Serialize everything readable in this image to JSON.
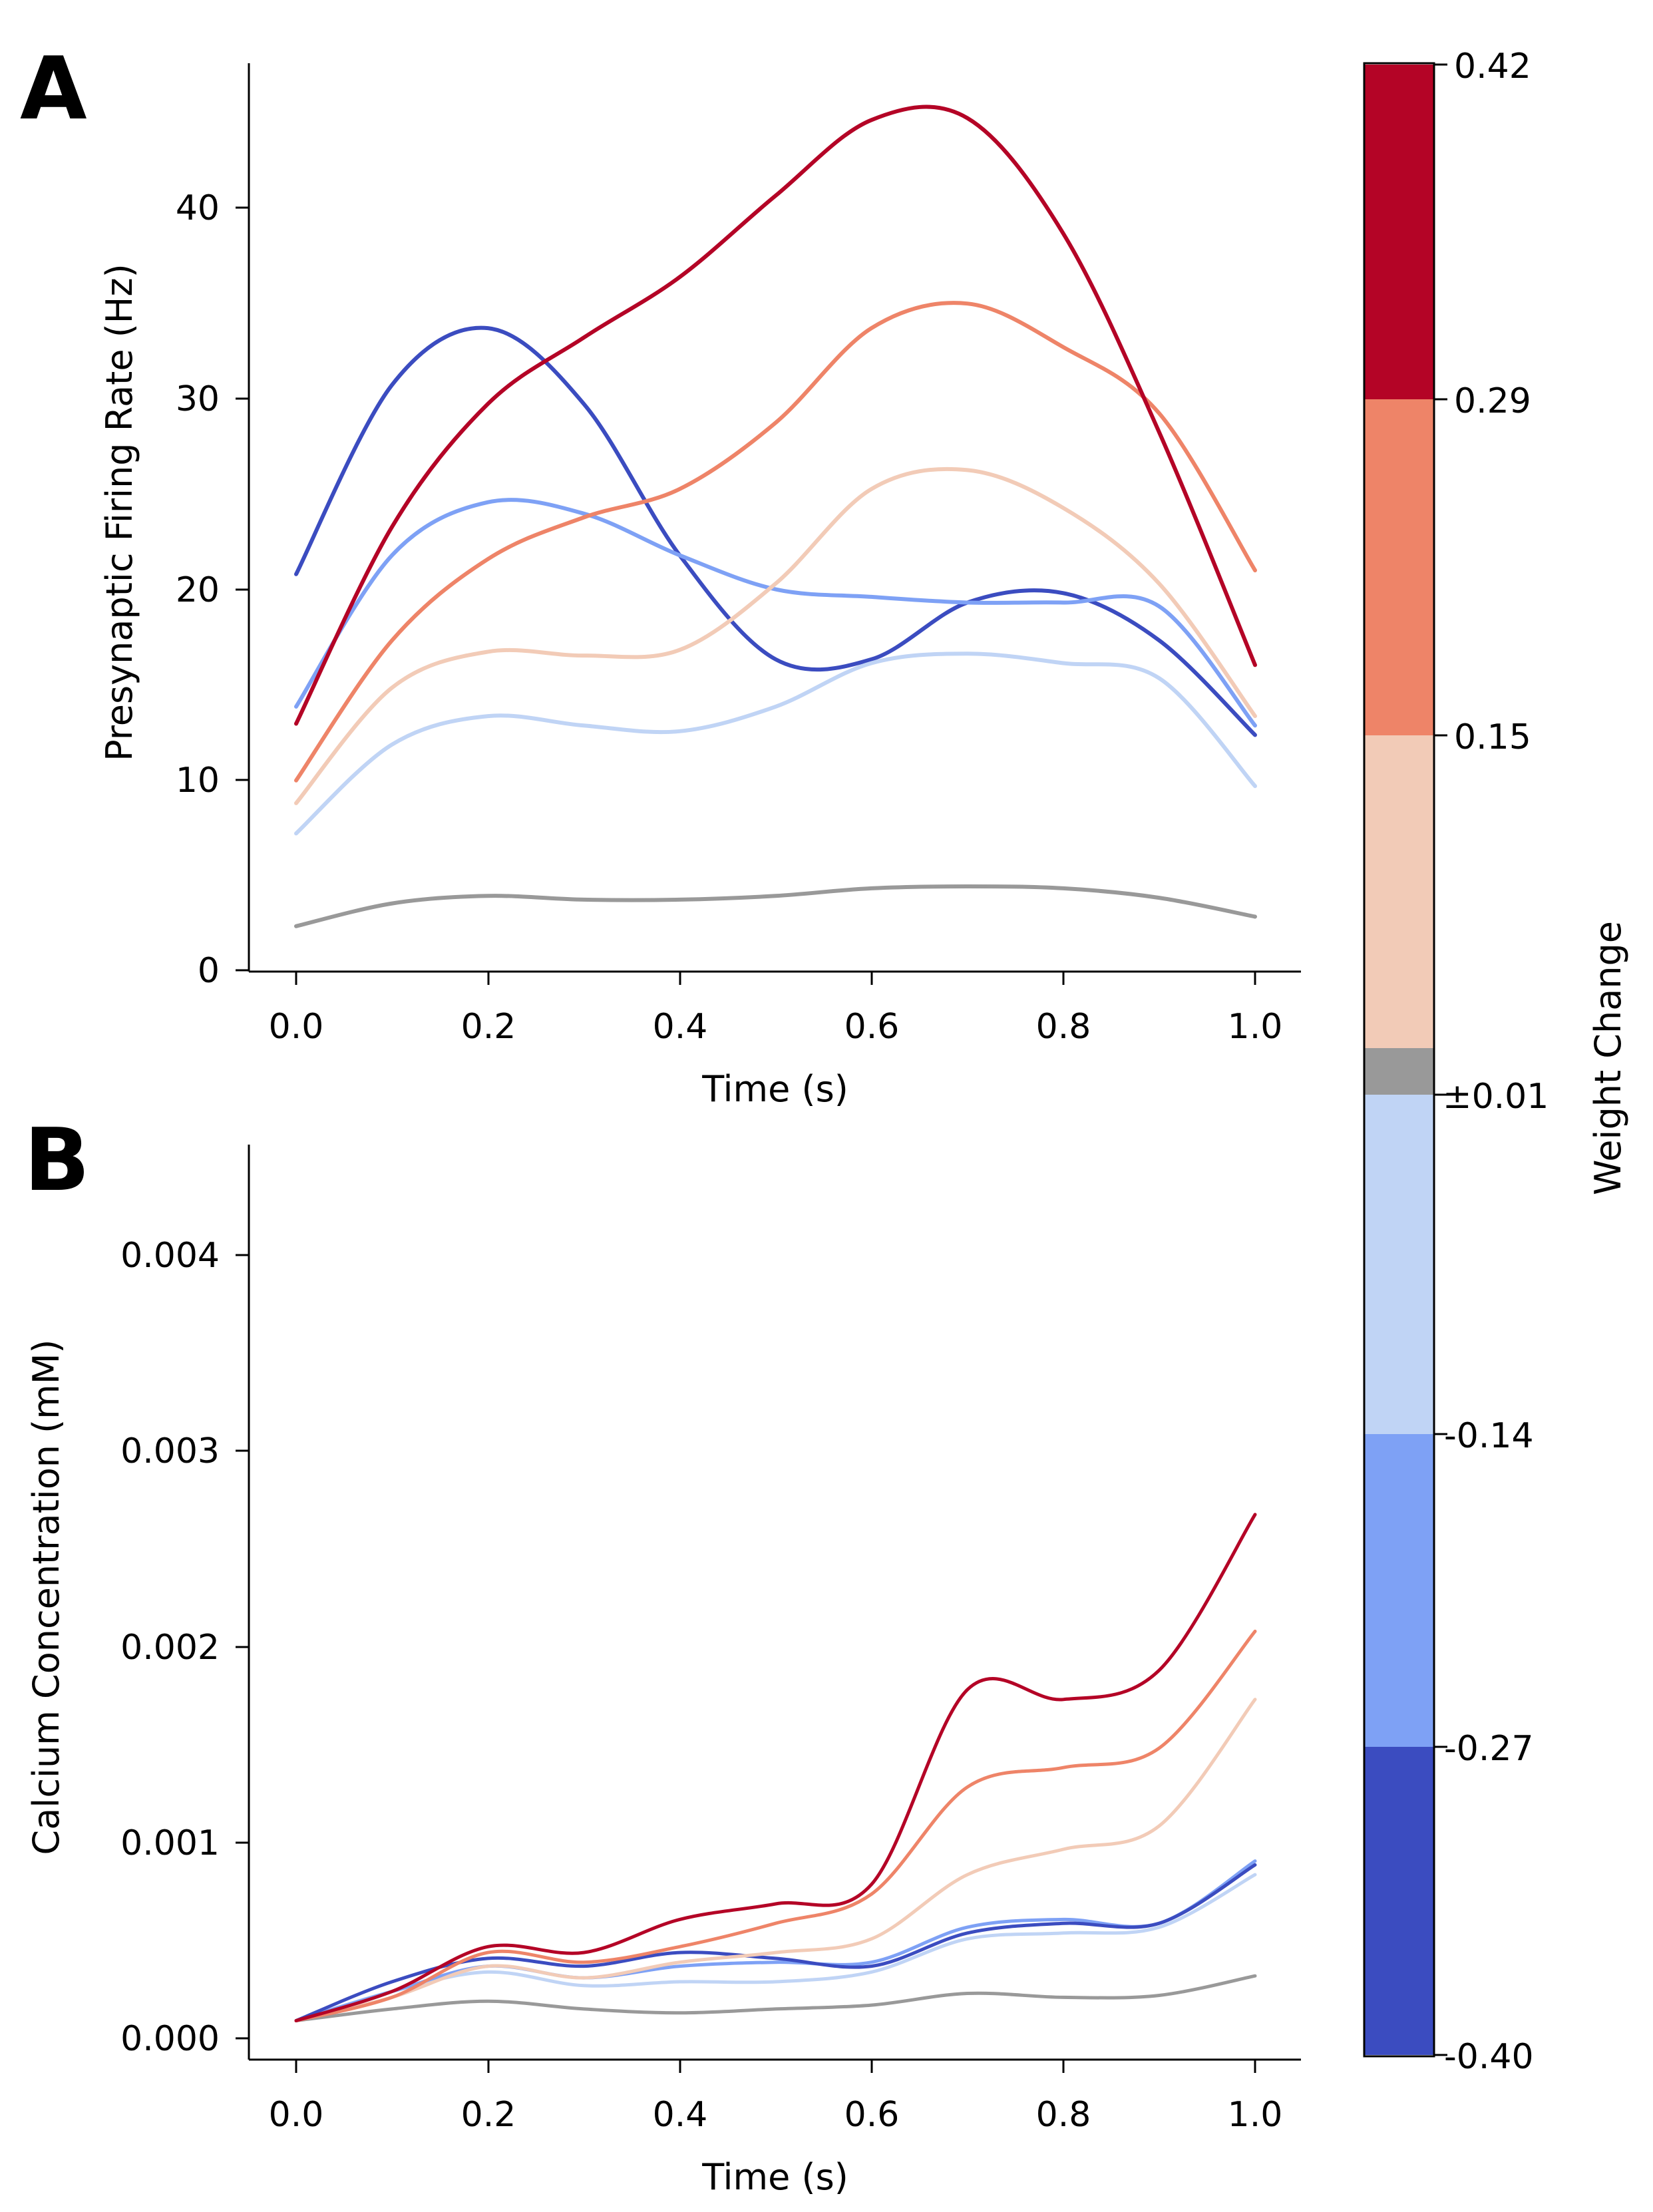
{
  "panels": {
    "a": {
      "letter": "A"
    },
    "b": {
      "letter": "B"
    }
  },
  "colorbar": {
    "label": "Weight Change",
    "ticks": [
      "0.42",
      "0.29",
      "0.15",
      "±0.01",
      "-0.14",
      "-0.27",
      "-0.40"
    ],
    "bins": [
      {
        "from": -0.4,
        "to": -0.27,
        "color": "#3b4cc0"
      },
      {
        "from": -0.27,
        "to": -0.14,
        "color": "#7ea1f5"
      },
      {
        "from": -0.14,
        "to": -0.01,
        "color": "#c0d4f5"
      },
      {
        "from": -0.01,
        "to": 0.01,
        "color": "#999999"
      },
      {
        "from": 0.01,
        "to": 0.15,
        "color": "#f2cbb7"
      },
      {
        "from": 0.15,
        "to": 0.29,
        "color": "#ee8468"
      },
      {
        "from": 0.29,
        "to": 0.42,
        "color": "#b40426"
      }
    ]
  },
  "chart_data": [
    {
      "type": "line",
      "panel": "A",
      "xlabel": "Time (s)",
      "ylabel": "Presynaptic Firing Rate (Hz)",
      "xlim": [
        -0.05,
        1.05
      ],
      "ylim": [
        -0.5,
        47.5
      ],
      "xticks": [
        "0.0",
        "0.2",
        "0.4",
        "0.6",
        "0.8",
        "1.0"
      ],
      "yticks": [
        "0",
        "10",
        "20",
        "30",
        "40"
      ],
      "x": [
        0.0,
        0.1,
        0.2,
        0.3,
        0.4,
        0.5,
        0.6,
        0.7,
        0.8,
        0.9,
        1.0
      ],
      "series": [
        {
          "name": "dark-blue",
          "color": "#3b4cc0",
          "values": [
            20.5,
            30.5,
            33.5,
            29.5,
            21.5,
            16.0,
            16.0,
            19.0,
            19.5,
            17.0,
            12.0
          ]
        },
        {
          "name": "mid-blue",
          "color": "#7ea1f5",
          "values": [
            13.5,
            21.5,
            24.3,
            23.7,
            21.5,
            19.7,
            19.3,
            19.0,
            19.0,
            18.8,
            12.5
          ]
        },
        {
          "name": "light-blue",
          "color": "#c0d4f5",
          "values": [
            6.8,
            11.5,
            13.0,
            12.5,
            12.2,
            13.5,
            15.8,
            16.3,
            15.8,
            15.0,
            9.3
          ]
        },
        {
          "name": "grey",
          "color": "#999999",
          "values": [
            1.9,
            3.1,
            3.5,
            3.3,
            3.3,
            3.5,
            3.9,
            4.0,
            3.9,
            3.4,
            2.4
          ]
        },
        {
          "name": "light-red",
          "color": "#f2cbb7",
          "values": [
            8.4,
            14.5,
            16.4,
            16.2,
            16.5,
            20.0,
            25.0,
            26.0,
            24.0,
            20.0,
            13.0
          ]
        },
        {
          "name": "mid-red",
          "color": "#ee8468",
          "values": [
            9.6,
            17.0,
            21.3,
            23.5,
            25.0,
            28.5,
            33.5,
            34.8,
            32.5,
            29.0,
            20.7
          ]
        },
        {
          "name": "dark-red",
          "color": "#b40426",
          "values": [
            12.6,
            23.0,
            29.5,
            33.0,
            36.2,
            40.5,
            44.5,
            44.6,
            38.5,
            28.0,
            15.7
          ]
        }
      ]
    },
    {
      "type": "line",
      "panel": "B",
      "xlabel": "Time (s)",
      "ylabel": "Calcium Concentration (mM)",
      "xlim": [
        -0.05,
        1.05
      ],
      "ylim": [
        -0.0001,
        0.0046
      ],
      "xticks": [
        "0.0",
        "0.2",
        "0.4",
        "0.6",
        "0.8",
        "1.0"
      ],
      "yticks": [
        "0.000",
        "0.001",
        "0.002",
        "0.003",
        "0.004"
      ],
      "x": [
        0.0,
        0.1,
        0.2,
        0.3,
        0.4,
        0.5,
        0.6,
        0.7,
        0.8,
        0.9,
        1.0
      ],
      "series": [
        {
          "name": "grey",
          "color": "#999999",
          "values": [
            0.0001,
            0.00016,
            0.0002,
            0.00016,
            0.00014,
            0.00016,
            0.00018,
            0.00024,
            0.00022,
            0.00023,
            0.00033
          ]
        },
        {
          "name": "light-blue",
          "color": "#c0d4f5",
          "values": [
            0.0001,
            0.00025,
            0.00035,
            0.00028,
            0.0003,
            0.0003,
            0.00035,
            0.00052,
            0.00055,
            0.00058,
            0.00085
          ]
        },
        {
          "name": "mid-blue",
          "color": "#7ea1f5",
          "values": [
            0.0001,
            0.00025,
            0.00038,
            0.00032,
            0.00038,
            0.0004,
            0.0004,
            0.00058,
            0.00062,
            0.0006,
            0.00092
          ]
        },
        {
          "name": "dark-blue",
          "color": "#3b4cc0",
          "values": [
            0.0001,
            0.0003,
            0.00042,
            0.00038,
            0.00045,
            0.00042,
            0.00038,
            0.00055,
            0.0006,
            0.0006,
            0.0009
          ]
        },
        {
          "name": "light-red",
          "color": "#f2cbb7",
          "values": [
            0.0001,
            0.00022,
            0.00038,
            0.00032,
            0.0004,
            0.00045,
            0.00052,
            0.00085,
            0.00098,
            0.0011,
            0.00175
          ]
        },
        {
          "name": "mid-red",
          "color": "#ee8468",
          "values": [
            0.0001,
            0.00022,
            0.00045,
            0.0004,
            0.00048,
            0.0006,
            0.00075,
            0.0013,
            0.0014,
            0.0015,
            0.0021
          ]
        },
        {
          "name": "dark-red",
          "color": "#b40426",
          "values": [
            0.0001,
            0.00025,
            0.00048,
            0.00045,
            0.00062,
            0.0007,
            0.0008,
            0.0018,
            0.00175,
            0.0019,
            0.0027
          ]
        }
      ]
    }
  ]
}
